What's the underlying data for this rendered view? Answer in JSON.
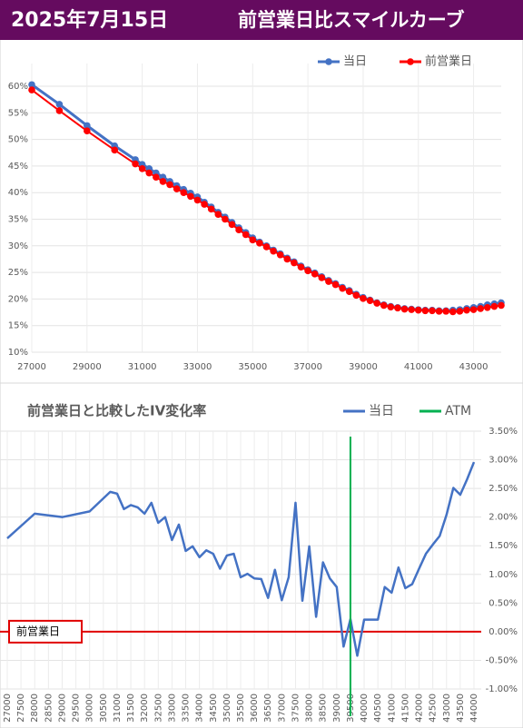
{
  "header": {
    "date": "2025年7月15日",
    "title": "前営業日比スマイルカーブ"
  },
  "chart_data": [
    {
      "type": "line",
      "x": [
        27000,
        28000,
        29000,
        30000,
        30750,
        31000,
        31250,
        31500,
        31750,
        32000,
        32250,
        32500,
        32750,
        33000,
        33250,
        33500,
        33750,
        34000,
        34250,
        34500,
        34750,
        35000,
        35250,
        35500,
        35750,
        36000,
        36250,
        36500,
        36750,
        37000,
        37250,
        37500,
        37750,
        38000,
        38250,
        38500,
        38750,
        39000,
        39250,
        39500,
        39750,
        40000,
        40250,
        40500,
        40750,
        41000,
        41250,
        41500,
        41750,
        42000,
        42250,
        42500,
        42750,
        43000,
        43250,
        43500,
        43750,
        44000
      ],
      "series": [
        {
          "name": "当日",
          "color": "#4472c4",
          "values": [
            60.3,
            56.6,
            52.6,
            48.8,
            46.2,
            45.3,
            44.5,
            43.7,
            42.9,
            42.1,
            41.3,
            40.6,
            39.9,
            39.2,
            38.2,
            37.3,
            36.3,
            35.4,
            34.4,
            33.4,
            32.5,
            31.5,
            30.7,
            30.0,
            29.2,
            28.5,
            27.7,
            27.0,
            26.2,
            25.5,
            24.9,
            24.2,
            23.5,
            22.9,
            22.2,
            21.6,
            20.9,
            20.3,
            19.8,
            19.3,
            18.9,
            18.6,
            18.4,
            18.2,
            18.1,
            18.0,
            17.9,
            17.9,
            17.8,
            17.8,
            17.9,
            18.0,
            18.2,
            18.4,
            18.6,
            18.9,
            19.1,
            19.3
          ]
        },
        {
          "name": "前営業日",
          "color": "#ff0000",
          "values": [
            59.3,
            55.4,
            51.6,
            48.0,
            45.4,
            44.5,
            43.7,
            42.9,
            42.1,
            41.5,
            40.7,
            40.0,
            39.3,
            38.6,
            37.8,
            36.9,
            35.9,
            35.0,
            34.0,
            33.0,
            32.1,
            31.1,
            30.5,
            29.8,
            29.0,
            28.3,
            27.5,
            26.8,
            26.0,
            25.3,
            24.7,
            24.0,
            23.3,
            22.7,
            22.0,
            21.4,
            20.7,
            20.1,
            19.7,
            19.2,
            18.8,
            18.5,
            18.3,
            18.1,
            18.0,
            17.9,
            17.8,
            17.8,
            17.7,
            17.7,
            17.6,
            17.7,
            17.9,
            18.0,
            18.2,
            18.4,
            18.6,
            18.8
          ]
        }
      ],
      "xlim": [
        27000,
        44000
      ],
      "xticks": [
        27000,
        29000,
        31000,
        33000,
        35000,
        37000,
        39000,
        41000,
        43000
      ],
      "ylim": [
        10,
        60
      ],
      "yticks": [
        {
          "value": 10,
          "label": "10%"
        },
        {
          "value": 15,
          "label": "15%"
        },
        {
          "value": 20,
          "label": "20%"
        },
        {
          "value": 25,
          "label": "25%"
        },
        {
          "value": 30,
          "label": "30%"
        },
        {
          "value": 35,
          "label": "35%"
        },
        {
          "value": 40,
          "label": "40%"
        },
        {
          "value": 45,
          "label": "45%"
        },
        {
          "value": 50,
          "label": "50%"
        },
        {
          "value": 55,
          "label": "55%"
        },
        {
          "value": 60,
          "label": "60%"
        }
      ],
      "grid": true,
      "markers": true,
      "legend": "top-right"
    },
    {
      "type": "line",
      "title": "前営業日と比較したIV変化率",
      "x": [
        27000,
        28000,
        29000,
        30000,
        30750,
        31000,
        31250,
        31500,
        31750,
        32000,
        32250,
        32500,
        32750,
        33000,
        33250,
        33500,
        33750,
        34000,
        34250,
        34500,
        34750,
        35000,
        35250,
        35500,
        35750,
        36000,
        36250,
        36500,
        36750,
        37000,
        37250,
        37500,
        37750,
        38000,
        38250,
        38500,
        38750,
        39000,
        39250,
        39500,
        39750,
        40000,
        40250,
        40500,
        40750,
        41000,
        41250,
        41500,
        41750,
        42000,
        42250,
        42500,
        42750,
        43000,
        43250,
        43500,
        43750,
        44000
      ],
      "series": [
        {
          "name": "当日",
          "color": "#4472c4",
          "values": [
            1.63,
            2.06,
            2.0,
            2.1,
            2.44,
            2.41,
            2.14,
            2.21,
            2.17,
            2.06,
            2.25,
            1.9,
            2.0,
            1.6,
            1.87,
            1.41,
            1.49,
            1.3,
            1.42,
            1.36,
            1.1,
            1.33,
            1.36,
            0.95,
            1.01,
            0.93,
            0.92,
            0.59,
            1.08,
            0.55,
            0.95,
            2.25,
            0.54,
            1.49,
            0.26,
            1.21,
            0.93,
            0.78,
            -0.26,
            0.22,
            -0.42,
            0.21,
            0.21,
            0.21,
            0.78,
            0.68,
            1.12,
            0.76,
            0.83,
            1.1,
            1.36,
            1.52,
            1.67,
            2.04,
            2.51,
            2.39,
            2.66,
            2.96
          ]
        },
        {
          "name": "ATM",
          "color": "#00b050",
          "x": 39500
        }
      ],
      "reference_line": {
        "value": 0,
        "color": "#e00000",
        "label": "前営業日"
      },
      "xlim": [
        27000,
        44000
      ],
      "xticks": [
        27000,
        27500,
        28000,
        28500,
        29000,
        29500,
        30000,
        30500,
        31000,
        31500,
        32000,
        32500,
        33000,
        33500,
        34000,
        34500,
        35000,
        35500,
        36000,
        36500,
        37000,
        37500,
        38000,
        38500,
        39000,
        39500,
        40000,
        40500,
        41000,
        41500,
        42000,
        42500,
        43000,
        43500,
        44000
      ],
      "ylim": [
        -1,
        3.5
      ],
      "yticks": [
        {
          "value": -1,
          "label": "-1.00%"
        },
        {
          "value": -0.5,
          "label": "-0.50%"
        },
        {
          "value": 0,
          "label": "0.00%"
        },
        {
          "value": 0.5,
          "label": "0.50%"
        },
        {
          "value": 1,
          "label": "1.00%"
        },
        {
          "value": 1.5,
          "label": "1.50%"
        },
        {
          "value": 2,
          "label": "2.00%"
        },
        {
          "value": 2.5,
          "label": "2.50%"
        },
        {
          "value": 3,
          "label": "3.00%"
        },
        {
          "value": 3.5,
          "label": "3.50%"
        }
      ],
      "grid": true,
      "markers": false,
      "legend": "top-right"
    }
  ]
}
